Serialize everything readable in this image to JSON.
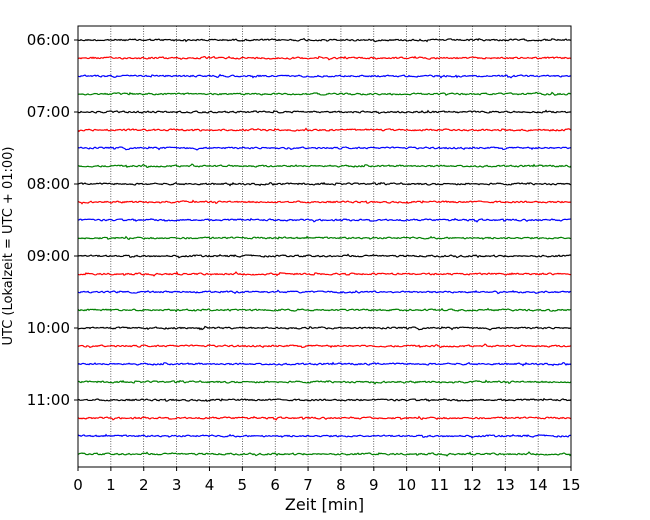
{
  "chart_data": {
    "type": "line",
    "title": "",
    "xlabel": "Zeit  [min]",
    "ylabel": "UTC (Lokalzeit = UTC + 01:00)",
    "xlim": [
      0,
      15
    ],
    "xticks": [
      0,
      1,
      2,
      3,
      4,
      5,
      6,
      7,
      8,
      9,
      10,
      11,
      12,
      13,
      14,
      15
    ],
    "yticks": [
      "06:00",
      "07:00",
      "08:00",
      "09:00",
      "10:00",
      "11:00"
    ],
    "trace_interval_minutes": 15,
    "trace_start_times": [
      "06:00",
      "06:15",
      "06:30",
      "06:45",
      "07:00",
      "07:15",
      "07:30",
      "07:45",
      "08:00",
      "08:15",
      "08:30",
      "08:45",
      "09:00",
      "09:15",
      "09:30",
      "09:45",
      "10:00",
      "10:15",
      "10:30",
      "10:45",
      "11:00",
      "11:15",
      "11:30",
      "11:45"
    ],
    "trace_color_cycle": [
      "#000000",
      "#ff0000",
      "#0000ff",
      "#008000"
    ],
    "grid": "vertical dotted",
    "legend": "none"
  }
}
